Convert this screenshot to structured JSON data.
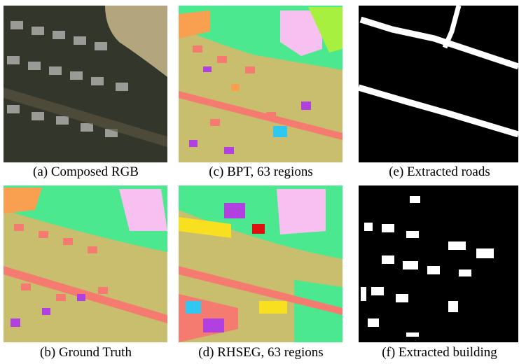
{
  "panels": [
    {
      "caption": "(a) Composed RGB"
    },
    {
      "caption": "(c) BPT, 63 regions"
    },
    {
      "caption": "(e) Extracted roads"
    },
    {
      "caption": "(b) Ground Truth"
    },
    {
      "caption": "(d) RHSEG, 63 regions"
    },
    {
      "caption": "(f) Extracted building"
    }
  ]
}
